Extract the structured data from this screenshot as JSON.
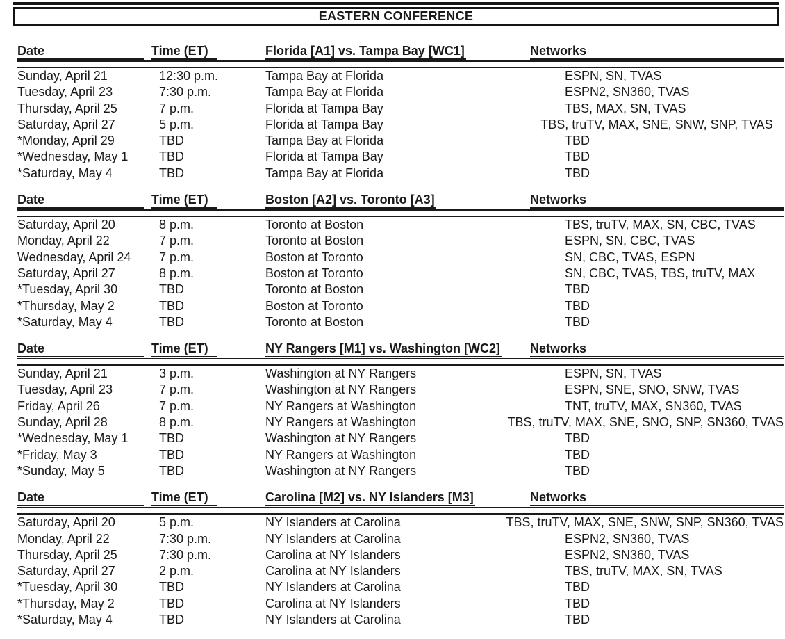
{
  "title": "EASTERN CONFERENCE",
  "columns": {
    "date": "Date",
    "time": "Time (ET)",
    "networks": "Networks"
  },
  "tables": [
    {
      "matchup": "Florida [A1] vs. Tampa Bay [WC1]",
      "rows": [
        {
          "date": "Sunday, April 21",
          "time": "12:30 p.m.",
          "game": "Tampa Bay at Florida",
          "networks": "ESPN, SN, TVAS"
        },
        {
          "date": "Tuesday, April 23",
          "time": "7:30 p.m.",
          "game": "Tampa Bay at Florida",
          "networks": "ESPN2, SN360, TVAS"
        },
        {
          "date": "Thursday, April 25",
          "time": "7 p.m.",
          "game": "Florida at Tampa Bay",
          "networks": "TBS, MAX, SN, TVAS"
        },
        {
          "date": "Saturday, April 27",
          "time": "5 p.m.",
          "game": "Florida at Tampa Bay",
          "networks": "TBS, truTV, MAX, SNE, SNW, SNP, TVAS"
        },
        {
          "date": "*Monday, April 29",
          "time": "TBD",
          "game": "Tampa Bay at Florida",
          "networks": "TBD"
        },
        {
          "date": "*Wednesday, May 1",
          "time": "TBD",
          "game": "Florida at Tampa Bay",
          "networks": "TBD"
        },
        {
          "date": "*Saturday, May 4",
          "time": "TBD",
          "game": "Tampa Bay at Florida",
          "networks": "TBD"
        }
      ]
    },
    {
      "matchup": "Boston [A2] vs. Toronto [A3]",
      "rows": [
        {
          "date": "Saturday, April 20",
          "time": "8 p.m.",
          "game": "Toronto at Boston",
          "networks": "TBS, truTV, MAX, SN, CBC, TVAS"
        },
        {
          "date": "Monday, April 22",
          "time": "7 p.m.",
          "game": "Toronto at Boston",
          "networks": "ESPN, SN, CBC, TVAS"
        },
        {
          "date": "Wednesday, April 24",
          "time": "7 p.m.",
          "game": "Boston at Toronto",
          "networks": "SN, CBC, TVAS, ESPN"
        },
        {
          "date": "Saturday, April 27",
          "time": "8 p.m.",
          "game": "Boston at Toronto",
          "networks": "SN, CBC, TVAS, TBS, truTV, MAX"
        },
        {
          "date": "*Tuesday, April 30",
          "time": "TBD",
          "game": "Toronto at Boston",
          "networks": "TBD"
        },
        {
          "date": "*Thursday, May 2",
          "time": "TBD",
          "game": "Boston at Toronto",
          "networks": "TBD"
        },
        {
          "date": "*Saturday, May 4",
          "time": "TBD",
          "game": "Toronto at Boston",
          "networks": "TBD"
        }
      ]
    },
    {
      "matchup": "NY Rangers [M1] vs. Washington [WC2]",
      "rows": [
        {
          "date": "Sunday, April 21",
          "time": "3 p.m.",
          "game": "Washington at NY Rangers",
          "networks": "ESPN, SN, TVAS"
        },
        {
          "date": "Tuesday, April 23",
          "time": "7 p.m.",
          "game": "Washington at NY Rangers",
          "networks": "ESPN, SNE, SNO, SNW, TVAS"
        },
        {
          "date": "Friday, April 26",
          "time": "7 p.m.",
          "game": "NY Rangers at Washington",
          "networks": "TNT, truTV, MAX, SN360, TVAS"
        },
        {
          "date": "Sunday, April 28",
          "time": "8 p.m.",
          "game": "NY Rangers at Washington",
          "networks": "TBS, truTV, MAX, SNE, SNO, SNP, SN360, TVAS"
        },
        {
          "date": "*Wednesday, May 1",
          "time": "TBD",
          "game": "Washington at NY Rangers",
          "networks": "TBD"
        },
        {
          "date": "*Friday, May 3",
          "time": "TBD",
          "game": "NY Rangers at Washington",
          "networks": "TBD"
        },
        {
          "date": "*Sunday, May 5",
          "time": "TBD",
          "game": "Washington at NY Rangers",
          "networks": "TBD"
        }
      ]
    },
    {
      "matchup": "Carolina [M2] vs. NY Islanders [M3]",
      "rows": [
        {
          "date": "Saturday, April 20",
          "time": "5 p.m.",
          "game": "NY Islanders at Carolina",
          "networks": "TBS, truTV, MAX, SNE, SNW, SNP, SN360, TVAS"
        },
        {
          "date": "Monday, April 22",
          "time": "7:30 p.m.",
          "game": "NY Islanders at Carolina",
          "networks": "ESPN2, SN360, TVAS"
        },
        {
          "date": "Thursday, April 25",
          "time": "7:30 p.m.",
          "game": "Carolina at NY Islanders",
          "networks": "ESPN2, SN360, TVAS"
        },
        {
          "date": "Saturday, April 27",
          "time": "2 p.m.",
          "game": "Carolina at NY Islanders",
          "networks": "TBS, truTV, MAX, SN, TVAS"
        },
        {
          "date": "*Tuesday, April 30",
          "time": "TBD",
          "game": "NY Islanders at Carolina",
          "networks": "TBD"
        },
        {
          "date": "*Thursday, May 2",
          "time": "TBD",
          "game": "Carolina at NY Islanders",
          "networks": "TBD"
        },
        {
          "date": "*Saturday, May 4",
          "time": "TBD",
          "game": "NY Islanders at Carolina",
          "networks": "TBD"
        }
      ]
    }
  ]
}
